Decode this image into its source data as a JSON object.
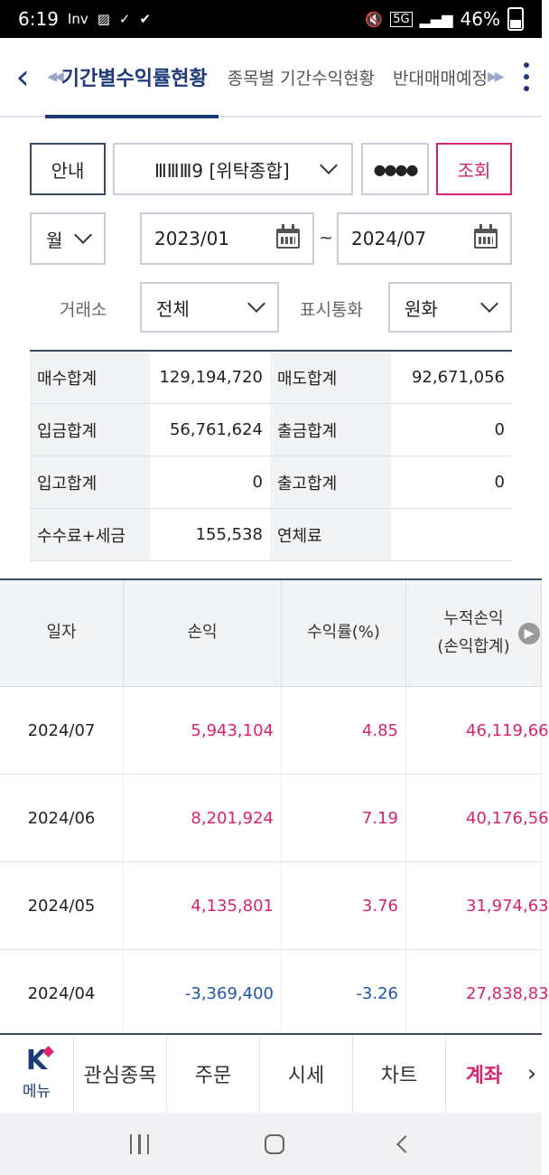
{
  "status_bar": {
    "time": "6:19",
    "left_icons": [
      "Inv",
      "gallery-icon",
      "v-icon",
      "check-icon"
    ],
    "network": "5G",
    "battery": "46%"
  },
  "header": {
    "tabs": [
      {
        "label": "기간별수익률현황",
        "active": true
      },
      {
        "label": "종목별 기간수익현황",
        "active": false
      },
      {
        "label": "반대매매예정",
        "active": false
      }
    ]
  },
  "controls": {
    "guide_label": "안내",
    "account_value": "ⅢⅢⅢ9 [위탁종합]",
    "password_mask": "●●●●",
    "search_label": "조회",
    "period_unit": "월",
    "start_date": "2023/01",
    "date_sep": "~",
    "end_date": "2024/07",
    "exchange_label": "거래소",
    "exchange_value": "전체",
    "currency_label": "표시통화",
    "currency_value": "원화"
  },
  "summary": [
    {
      "label1": "매수합계",
      "value1": "129,194,720",
      "label2": "매도합계",
      "value2": "92,671,056"
    },
    {
      "label1": "입금합계",
      "value1": "56,761,624",
      "label2": "출금합계",
      "value2": "0"
    },
    {
      "label1": "입고합계",
      "value1": "0",
      "label2": "출고합계",
      "value2": "0"
    },
    {
      "label1": "수수료+세금",
      "value1": "155,538",
      "label2": "연체료",
      "value2": ""
    }
  ],
  "table": {
    "headers": {
      "date": "일자",
      "pnl": "손익",
      "rate": "수익률(%)",
      "cum_line1": "누적손익",
      "cum_line2": "(손익합계)"
    },
    "rows": [
      {
        "date": "2024/07",
        "pnl": "5,943,104",
        "rate": "4.85",
        "cum": "46,119,66",
        "sign": "pos"
      },
      {
        "date": "2024/06",
        "pnl": "8,201,924",
        "rate": "7.19",
        "cum": "40,176,56",
        "sign": "pos"
      },
      {
        "date": "2024/05",
        "pnl": "4,135,801",
        "rate": "3.76",
        "cum": "31,974,63",
        "sign": "pos"
      },
      {
        "date": "2024/04",
        "pnl": "-3,369,400",
        "rate": "-3.26",
        "cum": "27,838,83",
        "sign": "neg"
      }
    ]
  },
  "bottom_nav": {
    "menu_logo": "K",
    "menu_label": "메뉴",
    "items": [
      "관심종목",
      "주문",
      "시세",
      "차트",
      "계좌"
    ],
    "active_index": 4
  },
  "colors": {
    "accent": "#1d3b7a",
    "positive": "#d6246e",
    "negative": "#1f57a8"
  }
}
